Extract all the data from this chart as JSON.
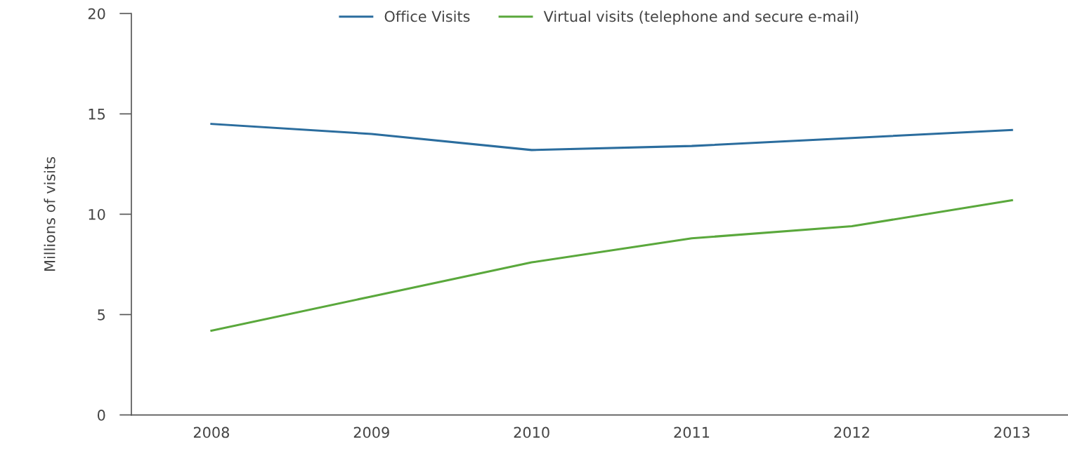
{
  "chart_data": {
    "type": "line",
    "ylabel": "Millions of visits",
    "x": [
      2008,
      2009,
      2010,
      2011,
      2012,
      2013
    ],
    "xlim": [
      2007.5,
      2013.35
    ],
    "xticks": [
      2008,
      2009,
      2010,
      2011,
      2012,
      2013
    ],
    "ylim": [
      0,
      20
    ],
    "yticks": [
      0,
      5,
      10,
      15,
      20
    ],
    "series": [
      {
        "name": "Office Visits",
        "color": "#2b6d9e",
        "values": [
          14.5,
          14.0,
          13.2,
          13.4,
          13.8,
          14.2
        ]
      },
      {
        "name": "Virtual visits (telephone and secure e-mail)",
        "color": "#5aa83c",
        "values": [
          4.2,
          5.9,
          7.6,
          8.8,
          9.4,
          10.7
        ]
      }
    ],
    "grid": false,
    "legend": "top",
    "marker": "none",
    "line_style": "solid"
  }
}
